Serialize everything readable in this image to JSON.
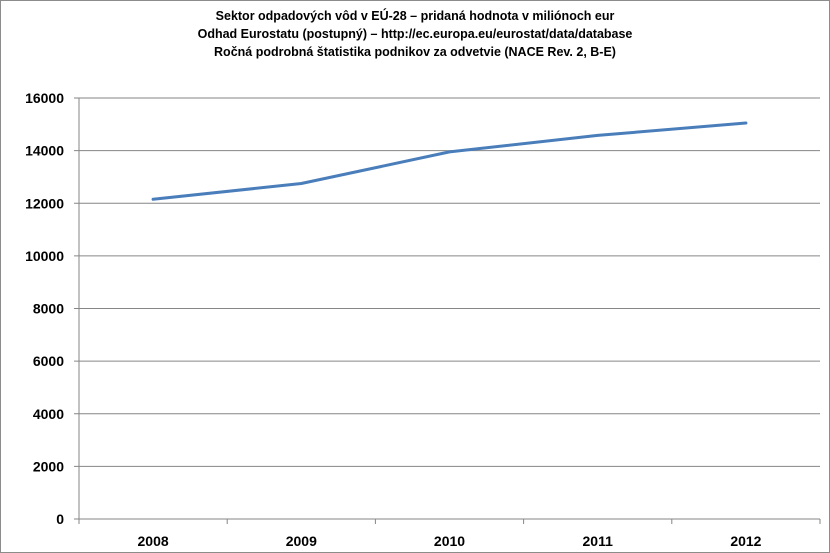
{
  "chart_data": {
    "type": "line",
    "title_lines": [
      "Sektor odpadových vôd v EÚ-28 – pridaná hodnota v miliónoch eur",
      "Odhad Eurostatu (postupný) – http://ec.europa.eu/eurostat/data/database",
      "Ročná podrobná štatistika podnikov za odvetvie (NACE Rev. 2, B-E)"
    ],
    "categories": [
      "2008",
      "2009",
      "2010",
      "2011",
      "2012"
    ],
    "series": [
      {
        "values": [
          12150,
          12750,
          13950,
          14580,
          15050
        ],
        "color": "#4a7ebb"
      }
    ],
    "ylim": [
      0,
      16000
    ],
    "yticks": [
      "0",
      "2000",
      "4000",
      "6000",
      "8000",
      "10000",
      "12000",
      "14000",
      "16000"
    ],
    "grid": "horizontal",
    "legend": "none"
  }
}
